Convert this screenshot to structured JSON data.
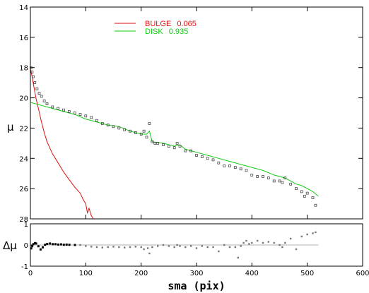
{
  "chart_data": [
    {
      "type": "line",
      "panel": "main",
      "xlabel": "",
      "ylabel": "μ",
      "xlim": [
        0,
        600
      ],
      "ylim": [
        28,
        14
      ],
      "y_inverted": true,
      "y_ticks": [
        "14",
        "16",
        "18",
        "20",
        "22",
        "24",
        "26",
        "28"
      ],
      "legend": {
        "placement": "top-center"
      },
      "series": [
        {
          "name": "BULGE",
          "fraction": "0.065",
          "color": "#dd1111",
          "style": "line",
          "points": [
            [
              0,
              18.0
            ],
            [
              5,
              19.0
            ],
            [
              10,
              20.0
            ],
            [
              15,
              20.8
            ],
            [
              20,
              21.6
            ],
            [
              25,
              22.3
            ],
            [
              30,
              22.9
            ],
            [
              40,
              23.7
            ],
            [
              50,
              24.3
            ],
            [
              60,
              24.9
            ],
            [
              70,
              25.4
            ],
            [
              80,
              25.9
            ],
            [
              90,
              26.3
            ],
            [
              95,
              26.7
            ],
            [
              100,
              27.0
            ],
            [
              103,
              27.6
            ],
            [
              106,
              27.3
            ],
            [
              110,
              27.8
            ],
            [
              114,
              28.0
            ]
          ]
        },
        {
          "name": "DISK",
          "fraction": "0.935",
          "color": "#11cc11",
          "style": "line",
          "points": [
            [
              0,
              20.3
            ],
            [
              20,
              20.5
            ],
            [
              40,
              20.7
            ],
            [
              60,
              20.9
            ],
            [
              80,
              21.1
            ],
            [
              100,
              21.4
            ],
            [
              120,
              21.6
            ],
            [
              140,
              21.8
            ],
            [
              160,
              21.9
            ],
            [
              180,
              22.2
            ],
            [
              200,
              22.4
            ],
            [
              210,
              22.4
            ],
            [
              215,
              22.2
            ],
            [
              220,
              22.9
            ],
            [
              240,
              23.0
            ],
            [
              260,
              23.2
            ],
            [
              270,
              23.1
            ],
            [
              280,
              23.4
            ],
            [
              300,
              23.6
            ],
            [
              320,
              23.8
            ],
            [
              340,
              24.0
            ],
            [
              360,
              24.2
            ],
            [
              380,
              24.4
            ],
            [
              400,
              24.6
            ],
            [
              420,
              24.8
            ],
            [
              440,
              25.1
            ],
            [
              460,
              25.3
            ],
            [
              470,
              25.5
            ],
            [
              480,
              25.7
            ],
            [
              490,
              25.8
            ],
            [
              500,
              26.0
            ],
            [
              510,
              26.2
            ],
            [
              520,
              26.5
            ]
          ]
        },
        {
          "name": "",
          "color": "#000000",
          "style": "markers",
          "points": [
            [
              1,
              18.0
            ],
            [
              3,
              18.3
            ],
            [
              5,
              18.6
            ],
            [
              8,
              19.0
            ],
            [
              12,
              19.4
            ],
            [
              16,
              19.7
            ],
            [
              20,
              19.9
            ],
            [
              25,
              20.2
            ],
            [
              30,
              20.4
            ],
            [
              40,
              20.6
            ],
            [
              50,
              20.7
            ],
            [
              60,
              20.8
            ],
            [
              70,
              20.9
            ],
            [
              80,
              21.0
            ],
            [
              90,
              21.1
            ],
            [
              100,
              21.2
            ],
            [
              110,
              21.3
            ],
            [
              120,
              21.5
            ],
            [
              130,
              21.7
            ],
            [
              140,
              21.8
            ],
            [
              150,
              21.9
            ],
            [
              160,
              22.0
            ],
            [
              170,
              22.1
            ],
            [
              180,
              22.2
            ],
            [
              190,
              22.3
            ],
            [
              200,
              22.4
            ],
            [
              205,
              22.2
            ],
            [
              210,
              22.6
            ],
            [
              215,
              21.7
            ],
            [
              220,
              22.9
            ],
            [
              225,
              23.0
            ],
            [
              230,
              23.0
            ],
            [
              240,
              23.1
            ],
            [
              250,
              23.2
            ],
            [
              260,
              23.3
            ],
            [
              265,
              23.0
            ],
            [
              270,
              23.2
            ],
            [
              280,
              23.5
            ],
            [
              290,
              23.5
            ],
            [
              300,
              23.8
            ],
            [
              310,
              23.9
            ],
            [
              320,
              24.0
            ],
            [
              330,
              24.1
            ],
            [
              340,
              24.3
            ],
            [
              350,
              24.5
            ],
            [
              360,
              24.5
            ],
            [
              370,
              24.6
            ],
            [
              380,
              24.7
            ],
            [
              390,
              24.8
            ],
            [
              400,
              25.1
            ],
            [
              410,
              25.2
            ],
            [
              420,
              25.2
            ],
            [
              430,
              25.3
            ],
            [
              440,
              25.5
            ],
            [
              450,
              25.5
            ],
            [
              455,
              25.6
            ],
            [
              460,
              25.3
            ],
            [
              470,
              25.7
            ],
            [
              480,
              26.0
            ],
            [
              490,
              26.2
            ],
            [
              495,
              26.5
            ],
            [
              500,
              26.3
            ],
            [
              510,
              26.6
            ],
            [
              515,
              27.1
            ]
          ]
        }
      ]
    },
    {
      "type": "scatter",
      "panel": "residual",
      "xlabel": "sma (pix)",
      "ylabel": "Δμ",
      "xlim": [
        0,
        600
      ],
      "ylim": [
        -1,
        1
      ],
      "x_ticks": [
        "0",
        "100",
        "200",
        "300",
        "400",
        "500",
        "600"
      ],
      "y_ticks": [
        "-1",
        "0",
        "1"
      ],
      "reference_line": 0,
      "series": [
        {
          "name": "",
          "color": "#000000",
          "style": "markers",
          "points": [
            [
              1,
              -0.15
            ],
            [
              3,
              -0.05
            ],
            [
              5,
              0.05
            ],
            [
              8,
              0.1
            ],
            [
              10,
              0.08
            ],
            [
              14,
              -0.05
            ],
            [
              18,
              -0.2
            ],
            [
              22,
              -0.1
            ],
            [
              26,
              0.02
            ],
            [
              30,
              0.06
            ],
            [
              35,
              0.08
            ],
            [
              40,
              0.05
            ],
            [
              45,
              0.05
            ],
            [
              50,
              0.03
            ],
            [
              55,
              0.04
            ],
            [
              60,
              0.02
            ],
            [
              65,
              0.03
            ],
            [
              70,
              0.02
            ],
            [
              80,
              0.01
            ],
            [
              90,
              0.0
            ],
            [
              100,
              -0.05
            ],
            [
              110,
              -0.08
            ],
            [
              120,
              -0.1
            ],
            [
              130,
              -0.12
            ],
            [
              140,
              -0.1
            ],
            [
              150,
              -0.08
            ],
            [
              160,
              -0.1
            ],
            [
              170,
              -0.12
            ],
            [
              180,
              -0.1
            ],
            [
              190,
              -0.08
            ],
            [
              200,
              -0.1
            ],
            [
              205,
              -0.2
            ],
            [
              212,
              -0.15
            ],
            [
              215,
              -0.4
            ],
            [
              220,
              -0.1
            ],
            [
              230,
              -0.05
            ],
            [
              240,
              0.0
            ],
            [
              250,
              -0.05
            ],
            [
              260,
              -0.1
            ],
            [
              265,
              0.0
            ],
            [
              270,
              -0.05
            ],
            [
              280,
              -0.1
            ],
            [
              290,
              -0.05
            ],
            [
              300,
              -0.15
            ],
            [
              310,
              -0.05
            ],
            [
              320,
              -0.1
            ],
            [
              330,
              -0.1
            ],
            [
              340,
              -0.3
            ],
            [
              350,
              0.0
            ],
            [
              360,
              -0.1
            ],
            [
              370,
              -0.1
            ],
            [
              375,
              -0.6
            ],
            [
              380,
              -0.05
            ],
            [
              385,
              0.1
            ],
            [
              390,
              0.2
            ],
            [
              395,
              0.05
            ],
            [
              400,
              0.1
            ],
            [
              410,
              0.2
            ],
            [
              420,
              0.1
            ],
            [
              430,
              0.15
            ],
            [
              440,
              0.1
            ],
            [
              450,
              0.0
            ],
            [
              455,
              -0.1
            ],
            [
              460,
              0.1
            ],
            [
              470,
              0.3
            ],
            [
              480,
              -0.2
            ],
            [
              490,
              0.4
            ],
            [
              500,
              0.5
            ],
            [
              510,
              0.55
            ],
            [
              515,
              0.6
            ]
          ]
        }
      ]
    }
  ]
}
